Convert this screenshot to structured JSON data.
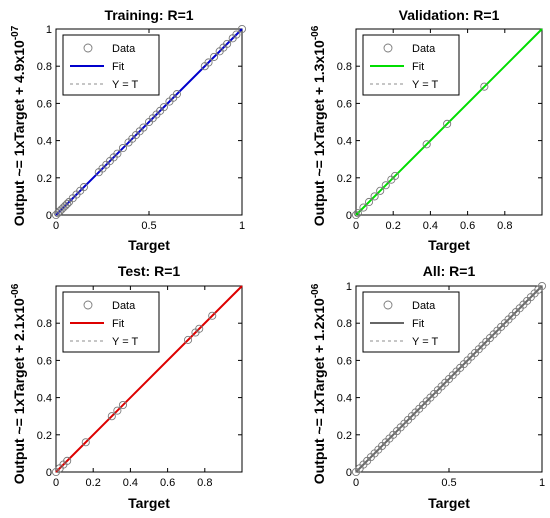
{
  "figure": {
    "charts": [
      {
        "title": "Training: R=1",
        "xlabel": "Target",
        "ylabel_main": "Output ~= 1xTarget + 4.9x10",
        "ylabel_exp": "-07",
        "legend": [
          "Data",
          "Fit",
          "Y = T"
        ]
      },
      {
        "title": "Validation: R=1",
        "xlabel": "Target",
        "ylabel_main": "Output ~= 1xTarget + 1.3x10",
        "ylabel_exp": "-06",
        "legend": [
          "Data",
          "Fit",
          "Y = T"
        ]
      },
      {
        "title": "Test: R=1",
        "xlabel": "Target",
        "ylabel_main": "Output ~= 1xTarget + 2.1x10",
        "ylabel_exp": "-06",
        "legend": [
          "Data",
          "Fit",
          "Y = T"
        ]
      },
      {
        "title": "All: R=1",
        "xlabel": "Target",
        "ylabel_main": "Output ~= 1xTarget + 1.2x10",
        "ylabel_exp": "-06",
        "legend": [
          "Data",
          "Fit",
          "Y = T"
        ]
      }
    ]
  },
  "chart_data": [
    {
      "type": "scatter",
      "title": "Training: R=1",
      "xlabel": "Target",
      "ylabel": "Output ~= 1xTarget + 4.9x10^-07",
      "xlim": [
        0,
        1
      ],
      "ylim": [
        0,
        1
      ],
      "xticks": [
        "0",
        "0.5",
        "1"
      ],
      "yticks": [
        "0",
        "0.2",
        "0.4",
        "0.6",
        "0.8",
        "1"
      ],
      "fit_color": "#0000cc",
      "legend_position": "top-left",
      "series": [
        {
          "name": "Data",
          "x": [
            0.0,
            0.01,
            0.02,
            0.03,
            0.04,
            0.05,
            0.06,
            0.07,
            0.09,
            0.11,
            0.13,
            0.15,
            0.23,
            0.25,
            0.27,
            0.29,
            0.31,
            0.33,
            0.36,
            0.39,
            0.41,
            0.43,
            0.45,
            0.47,
            0.5,
            0.52,
            0.54,
            0.56,
            0.58,
            0.61,
            0.63,
            0.65,
            0.8,
            0.82,
            0.85,
            0.88,
            0.9,
            0.92,
            0.95,
            0.97,
            1.0
          ],
          "y": [
            0.0,
            0.01,
            0.02,
            0.03,
            0.04,
            0.05,
            0.06,
            0.07,
            0.09,
            0.11,
            0.13,
            0.15,
            0.23,
            0.25,
            0.27,
            0.29,
            0.31,
            0.33,
            0.36,
            0.39,
            0.41,
            0.43,
            0.45,
            0.47,
            0.5,
            0.52,
            0.54,
            0.56,
            0.58,
            0.61,
            0.63,
            0.65,
            0.8,
            0.82,
            0.85,
            0.88,
            0.9,
            0.92,
            0.95,
            0.97,
            1.0
          ]
        },
        {
          "name": "Fit",
          "x": [
            0,
            1
          ],
          "y": [
            0,
            1
          ]
        },
        {
          "name": "Y = T",
          "x": [
            0,
            1
          ],
          "y": [
            0,
            1
          ]
        }
      ]
    },
    {
      "type": "scatter",
      "title": "Validation: R=1",
      "xlabel": "Target",
      "ylabel": "Output ~= 1xTarget + 1.3x10^-06",
      "xlim": [
        0,
        1
      ],
      "ylim": [
        0,
        1
      ],
      "xticks": [
        "0",
        "0.2",
        "0.4",
        "0.6",
        "0.8"
      ],
      "yticks": [
        "0",
        "0.2",
        "0.4",
        "0.6",
        "0.8"
      ],
      "fit_color": "#00dd00",
      "legend_position": "top-left",
      "series": [
        {
          "name": "Data",
          "x": [
            0.0,
            0.01,
            0.04,
            0.07,
            0.1,
            0.13,
            0.16,
            0.19,
            0.21,
            0.38,
            0.49,
            0.69
          ],
          "y": [
            0.0,
            0.01,
            0.04,
            0.07,
            0.1,
            0.13,
            0.16,
            0.19,
            0.21,
            0.38,
            0.49,
            0.69
          ]
        },
        {
          "name": "Fit",
          "x": [
            0,
            1
          ],
          "y": [
            0,
            1
          ]
        },
        {
          "name": "Y = T",
          "x": [
            0,
            1
          ],
          "y": [
            0,
            1
          ]
        }
      ]
    },
    {
      "type": "scatter",
      "title": "Test: R=1",
      "xlabel": "Target",
      "ylabel": "Output ~= 1xTarget + 2.1x10^-06",
      "xlim": [
        0,
        1
      ],
      "ylim": [
        0,
        1
      ],
      "xticks": [
        "0",
        "0.2",
        "0.4",
        "0.6",
        "0.8"
      ],
      "yticks": [
        "0",
        "0.2",
        "0.4",
        "0.6",
        "0.8"
      ],
      "fit_color": "#dd0000",
      "legend_position": "top-left",
      "series": [
        {
          "name": "Data",
          "x": [
            0.0,
            0.02,
            0.04,
            0.06,
            0.16,
            0.3,
            0.33,
            0.36,
            0.71,
            0.75,
            0.77,
            0.84
          ],
          "y": [
            0.0,
            0.02,
            0.04,
            0.06,
            0.16,
            0.3,
            0.33,
            0.36,
            0.71,
            0.75,
            0.77,
            0.84
          ]
        },
        {
          "name": "Fit",
          "x": [
            0,
            1
          ],
          "y": [
            0,
            1
          ]
        },
        {
          "name": "Y = T",
          "x": [
            0,
            1
          ],
          "y": [
            0,
            1
          ]
        }
      ]
    },
    {
      "type": "scatter",
      "title": "All: R=1",
      "xlabel": "Target",
      "ylabel": "Output ~= 1xTarget + 1.2x10^-06",
      "xlim": [
        0,
        1
      ],
      "ylim": [
        0,
        1
      ],
      "xticks": [
        "0",
        "0.5",
        "1"
      ],
      "yticks": [
        "0",
        "0.2",
        "0.4",
        "0.6",
        "0.8",
        "1"
      ],
      "fit_color": "#666666",
      "legend_position": "top-left",
      "series": [
        {
          "name": "Data",
          "x": [
            0.0,
            0.02,
            0.04,
            0.06,
            0.08,
            0.1,
            0.12,
            0.14,
            0.16,
            0.18,
            0.2,
            0.22,
            0.24,
            0.26,
            0.28,
            0.3,
            0.32,
            0.34,
            0.36,
            0.38,
            0.4,
            0.42,
            0.44,
            0.46,
            0.48,
            0.5,
            0.52,
            0.54,
            0.56,
            0.58,
            0.6,
            0.62,
            0.64,
            0.66,
            0.68,
            0.7,
            0.72,
            0.74,
            0.76,
            0.78,
            0.8,
            0.82,
            0.84,
            0.86,
            0.88,
            0.9,
            0.92,
            0.94,
            0.96,
            0.98,
            1.0
          ],
          "y": [
            0.0,
            0.02,
            0.04,
            0.06,
            0.08,
            0.1,
            0.12,
            0.14,
            0.16,
            0.18,
            0.2,
            0.22,
            0.24,
            0.26,
            0.28,
            0.3,
            0.32,
            0.34,
            0.36,
            0.38,
            0.4,
            0.42,
            0.44,
            0.46,
            0.48,
            0.5,
            0.52,
            0.54,
            0.56,
            0.58,
            0.6,
            0.62,
            0.64,
            0.66,
            0.68,
            0.7,
            0.72,
            0.74,
            0.76,
            0.78,
            0.8,
            0.82,
            0.84,
            0.86,
            0.88,
            0.9,
            0.92,
            0.94,
            0.96,
            0.98,
            1.0
          ]
        },
        {
          "name": "Fit",
          "x": [
            0,
            1
          ],
          "y": [
            0,
            1
          ]
        },
        {
          "name": "Y = T",
          "x": [
            0,
            1
          ],
          "y": [
            0,
            1
          ]
        }
      ]
    }
  ]
}
